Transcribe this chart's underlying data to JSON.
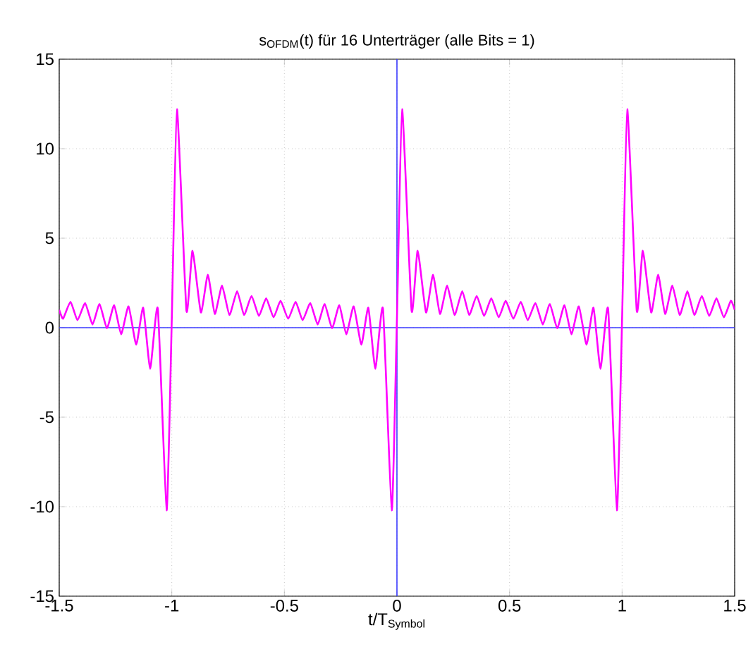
{
  "chart_data": {
    "type": "line",
    "title": "s$_{OFDM}$(t) für 16 Unterträger (alle Bits = 1)",
    "xlabel": "t/T$_{Symbol}$",
    "xlim": [
      -1.5,
      1.5
    ],
    "ylim": [
      -15,
      15
    ],
    "xticks": [
      -1.5,
      -1,
      -0.5,
      0,
      0.5,
      1,
      1.5
    ],
    "yticks": [
      -15,
      -10,
      -5,
      0,
      5,
      10,
      15
    ],
    "grid": true,
    "line_style": "solid",
    "marker": "none",
    "series": [
      {
        "color": "#3a3aff",
        "x": [
          -1.5,
          1.5
        ],
        "values": [
          0,
          0
        ]
      },
      {
        "color": "#3a3aff",
        "x": [
          0,
          0
        ],
        "values": [
          -15,
          15
        ]
      },
      {
        "color": "#ff00ff",
        "x": [
          -1.5,
          -1.483,
          -1.45,
          -1.419,
          -1.385,
          -1.352,
          -1.321,
          -1.288,
          -1.256,
          -1.225,
          -1.192,
          -1.158,
          -1.127,
          -1.096,
          -1.062,
          -1.023,
          -1.0,
          -0.977,
          -0.935,
          -0.908,
          -0.871,
          -0.84,
          -0.809,
          -0.777,
          -0.744,
          -0.71,
          -0.679,
          -0.646,
          -0.613,
          -0.581,
          -0.548,
          -0.517,
          -0.483,
          -0.45,
          -0.419,
          -0.385,
          -0.352,
          -0.321,
          -0.288,
          -0.256,
          -0.225,
          -0.192,
          -0.158,
          -0.127,
          -0.096,
          -0.062,
          -0.023,
          0,
          0.023,
          0.065,
          0.092,
          0.129,
          0.16,
          0.191,
          0.223,
          0.256,
          0.29,
          0.321,
          0.354,
          0.387,
          0.419,
          0.452,
          0.483,
          0.517,
          0.55,
          0.581,
          0.615,
          0.648,
          0.679,
          0.712,
          0.744,
          0.775,
          0.808,
          0.842,
          0.873,
          0.904,
          0.938,
          0.977,
          1.0,
          1.023,
          1.065,
          1.092,
          1.129,
          1.16,
          1.191,
          1.223,
          1.256,
          1.29,
          1.321,
          1.354,
          1.387,
          1.419,
          1.452,
          1.483,
          1.5
        ],
        "values": [
          1.0,
          0.5,
          1.45,
          0.42,
          1.37,
          0.18,
          1.32,
          -0.03,
          1.25,
          -0.37,
          1.19,
          -0.95,
          1.11,
          -2.3,
          1.06,
          -10.2,
          0.5,
          12.2,
          0.95,
          4.3,
          0.85,
          2.96,
          0.77,
          2.35,
          0.71,
          2.04,
          0.71,
          1.77,
          0.66,
          1.64,
          0.58,
          1.5,
          0.5,
          1.45,
          0.42,
          1.37,
          0.18,
          1.32,
          -0.03,
          1.25,
          -0.37,
          1.19,
          -0.95,
          1.11,
          -2.3,
          1.06,
          -10.2,
          0.5,
          12.2,
          0.95,
          4.3,
          0.85,
          2.96,
          0.77,
          2.35,
          0.71,
          2.04,
          0.71,
          1.77,
          0.66,
          1.64,
          0.58,
          1.5,
          0.5,
          1.45,
          0.42,
          1.37,
          0.18,
          1.32,
          -0.03,
          1.25,
          -0.37,
          1.19,
          -0.95,
          1.11,
          -2.3,
          1.06,
          -10.2,
          0.5,
          12.2,
          0.95,
          4.3,
          0.85,
          2.96,
          0.77,
          2.35,
          0.71,
          2.04,
          0.71,
          1.77,
          0.66,
          1.64,
          0.58,
          1.5,
          1.0
        ]
      }
    ]
  }
}
